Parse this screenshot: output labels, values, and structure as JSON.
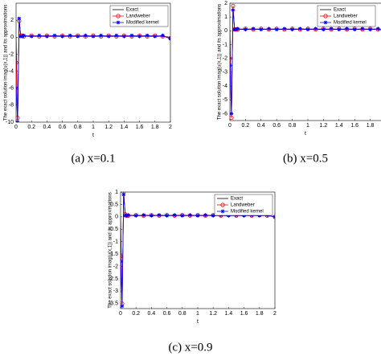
{
  "chart_data": [
    {
      "type": "line",
      "caption": "(a) x=0.1",
      "xlabel": "t",
      "ylabel": "The exact solution imag(u(x,1)) and its approximations",
      "x": [
        0,
        0.02,
        0.04,
        0.06,
        0.08,
        0.1,
        0.2,
        0.3,
        0.4,
        0.5,
        0.6,
        0.7,
        0.8,
        0.9,
        1,
        1.1,
        1.2,
        1.3,
        1.4,
        1.5,
        1.6,
        1.7,
        1.8,
        1.9,
        2
      ],
      "xlim": [
        0,
        2
      ],
      "xticks": [
        0,
        0.2,
        0.4,
        0.6,
        0.8,
        1,
        1.2,
        1.4,
        1.6,
        1.8,
        2
      ],
      "ylim": [
        -10,
        4
      ],
      "yticks": [
        -10,
        -8,
        -6,
        -4,
        -2,
        0,
        2
      ],
      "legend": "upper right",
      "series": [
        {
          "name": "Exact",
          "color": "#000000",
          "marker": "none",
          "values": [
            0,
            -10,
            2,
            0.2,
            0.1,
            0.1,
            0.1,
            0.1,
            0.1,
            0.1,
            0.1,
            0.1,
            0.1,
            0.1,
            0.1,
            0.1,
            0.1,
            0.1,
            0.1,
            0.1,
            0.1,
            0.1,
            0.1,
            0.1,
            0
          ]
        },
        {
          "name": "Landweber",
          "color": "#ff0000",
          "marker": "circle",
          "values": [
            -3,
            -9.5,
            1.9,
            0.2,
            0.2,
            0.1,
            0.2,
            0.1,
            0.2,
            0.1,
            0.2,
            0.1,
            0.2,
            0.1,
            0.2,
            0.1,
            0.2,
            0.1,
            0.2,
            0.1,
            0.2,
            0.1,
            0.2,
            0.1,
            -0.1
          ]
        },
        {
          "name": "Modified kernel",
          "color": "#0000ff",
          "marker": "star",
          "values": [
            -6,
            -10,
            2.2,
            0.1,
            0.1,
            0.2,
            0.1,
            0.2,
            0.1,
            0.2,
            0.1,
            0.2,
            0.1,
            0.2,
            0.1,
            0.2,
            0.1,
            0.2,
            0.1,
            0.2,
            0.1,
            0.2,
            0.1,
            0.2,
            -0.2
          ]
        }
      ]
    },
    {
      "type": "line",
      "caption": "(b) x=0.5",
      "xlabel": "t",
      "ylabel": "The exact solution imag(u(x,1)) and its approximations",
      "x": [
        0,
        0.02,
        0.04,
        0.06,
        0.08,
        0.1,
        0.2,
        0.3,
        0.4,
        0.5,
        0.6,
        0.7,
        0.8,
        0.9,
        1,
        1.1,
        1.2,
        1.3,
        1.4,
        1.5,
        1.6,
        1.7,
        1.8,
        1.9,
        2
      ],
      "xlim": [
        0,
        2
      ],
      "xticks": [
        0,
        0.2,
        0.4,
        0.6,
        0.8,
        1,
        1.2,
        1.4,
        1.6,
        1.8,
        2
      ],
      "ylim": [
        -6.5,
        2
      ],
      "yticks": [
        -6,
        -5,
        -4,
        -3,
        -2,
        -1,
        0,
        1,
        2
      ],
      "legend": "upper right",
      "series": [
        {
          "name": "Exact",
          "color": "#000000",
          "marker": "none",
          "values": [
            0,
            -6.3,
            1.8,
            0.1,
            0.1,
            0.1,
            0.1,
            0.1,
            0.1,
            0.1,
            0.1,
            0.1,
            0.1,
            0.1,
            0.1,
            0.1,
            0.1,
            0.1,
            0.1,
            0.1,
            0.1,
            0.1,
            0.1,
            0.1,
            0
          ]
        },
        {
          "name": "Landweber",
          "color": "#ff0000",
          "marker": "circle",
          "values": [
            -2,
            -6.3,
            1.8,
            0.1,
            0.1,
            0.1,
            0.15,
            0.1,
            0.15,
            0.1,
            0.15,
            0.1,
            0.15,
            0.1,
            0.15,
            0.1,
            0.15,
            0.1,
            0.15,
            0.1,
            0.15,
            0.1,
            0.15,
            0.1,
            0
          ]
        },
        {
          "name": "Modified kernel",
          "color": "#0000ff",
          "marker": "star",
          "values": [
            -2.5,
            -6,
            1.5,
            0.1,
            0.1,
            0.15,
            0.1,
            0.15,
            0.1,
            0.15,
            0.1,
            0.15,
            0.1,
            0.15,
            0.1,
            0.15,
            0.1,
            0.15,
            0.1,
            0.15,
            0.1,
            0.15,
            0.1,
            0.15,
            0
          ]
        }
      ]
    },
    {
      "type": "line",
      "caption": "(c) x=0.9",
      "xlabel": "t",
      "ylabel": "The exact solution imag(u(x,1)) and its approximations",
      "x": [
        0,
        0.02,
        0.04,
        0.06,
        0.08,
        0.1,
        0.2,
        0.3,
        0.4,
        0.5,
        0.6,
        0.7,
        0.8,
        0.9,
        1,
        1.1,
        1.2,
        1.3,
        1.4,
        1.5,
        1.6,
        1.7,
        1.8,
        1.9,
        2
      ],
      "xlim": [
        0,
        2
      ],
      "xticks": [
        0,
        0.2,
        0.4,
        0.6,
        0.8,
        1,
        1.2,
        1.4,
        1.6,
        1.8,
        2
      ],
      "ylim": [
        -3.7,
        1
      ],
      "yticks": [
        -3.5,
        -3,
        -2.5,
        -2,
        -1.5,
        -1,
        -0.5,
        0,
        0.5,
        1
      ],
      "legend": "upper right",
      "series": [
        {
          "name": "Exact",
          "color": "#000000",
          "marker": "none",
          "values": [
            0,
            -3.5,
            1,
            0.1,
            0.05,
            0.05,
            0.05,
            0.05,
            0.05,
            0.05,
            0.05,
            0.05,
            0.05,
            0.05,
            0.05,
            0.05,
            0.05,
            0.05,
            0.05,
            0.05,
            0.05,
            0.05,
            0.05,
            0.05,
            0
          ]
        },
        {
          "name": "Landweber",
          "color": "#ff0000",
          "marker": "circle",
          "values": [
            -1.6,
            -3.5,
            1,
            0.1,
            0.05,
            0.05,
            0.07,
            0.05,
            0.07,
            0.05,
            0.07,
            0.05,
            0.07,
            0.05,
            0.07,
            0.05,
            0.07,
            0.05,
            0.07,
            0.05,
            0.07,
            0.05,
            0.07,
            0.05,
            0
          ]
        },
        {
          "name": "Modified kernel",
          "color": "#0000ff",
          "marker": "star",
          "values": [
            -1.8,
            -3.6,
            0.9,
            0.05,
            0.05,
            0.07,
            0.05,
            0.07,
            0.05,
            0.07,
            0.05,
            0.07,
            0.05,
            0.07,
            0.05,
            0.07,
            0.05,
            0.07,
            0.05,
            0.07,
            0.05,
            0.07,
            0.05,
            0.07,
            0
          ]
        }
      ]
    }
  ]
}
